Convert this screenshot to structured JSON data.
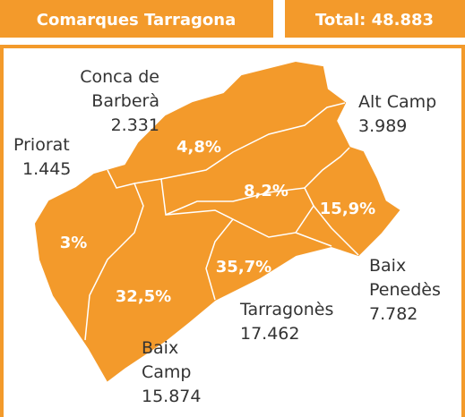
{
  "header": {
    "title": "Comarques Tarragona",
    "total": "Total: 48.883"
  },
  "regions": [
    {
      "name_lines": [
        "Conca de",
        "Barberà"
      ],
      "value": "2.331",
      "percent": "4,8%"
    },
    {
      "name_lines": [
        "Alt Camp"
      ],
      "value": "3.989",
      "percent": "8,2%"
    },
    {
      "name_lines": [
        "Priorat"
      ],
      "value": "1.445",
      "percent": "3%"
    },
    {
      "name_lines": [
        "Baix",
        "Penedès"
      ],
      "value": "7.782",
      "percent": "15,9%"
    },
    {
      "name_lines": [
        "Tarragonès"
      ],
      "value": "17.462",
      "percent": "35,7%"
    },
    {
      "name_lines": [
        "Baix",
        "Camp"
      ],
      "value": "15.874",
      "percent": "32,5%"
    }
  ]
}
